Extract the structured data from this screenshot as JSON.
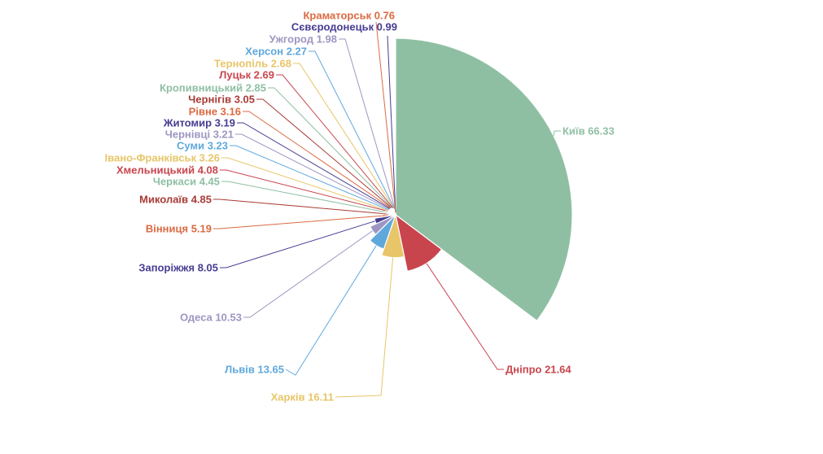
{
  "chart_data": {
    "type": "pie",
    "variant": "nightingale-rose",
    "title": "",
    "legend": "none",
    "grid": false,
    "background": "#ffffff",
    "label_format": "{name} {value}",
    "series": [
      {
        "name": "Київ",
        "value": 66.33,
        "color": "#8FBFA3"
      },
      {
        "name": "Дніпро",
        "value": 21.64,
        "color": "#C9454D"
      },
      {
        "name": "Харків",
        "value": 16.11,
        "color": "#E7C568"
      },
      {
        "name": "Львів",
        "value": 13.65,
        "color": "#5FA8DC"
      },
      {
        "name": "Одеса",
        "value": 10.53,
        "color": "#9E96C2"
      },
      {
        "name": "Запоріжжя",
        "value": 8.05,
        "color": "#453C92"
      },
      {
        "name": "Вінниця",
        "value": 5.19,
        "color": "#DB6A42"
      },
      {
        "name": "Миколаїв",
        "value": 4.85,
        "color": "#A93B35"
      },
      {
        "name": "Черкаси",
        "value": 4.45,
        "color": "#8FBFA3"
      },
      {
        "name": "Хмельницький",
        "value": 4.08,
        "color": "#C9454D"
      },
      {
        "name": "Івано-Франківськ",
        "value": 3.26,
        "color": "#E7C568"
      },
      {
        "name": "Суми",
        "value": 3.23,
        "color": "#5FA8DC"
      },
      {
        "name": "Чернівці",
        "value": 3.21,
        "color": "#9E96C2"
      },
      {
        "name": "Житомир",
        "value": 3.19,
        "color": "#453C92"
      },
      {
        "name": "Рівне",
        "value": 3.16,
        "color": "#DB6A42"
      },
      {
        "name": "Чернігів",
        "value": 3.05,
        "color": "#A93B35"
      },
      {
        "name": "Кропивницький",
        "value": 2.85,
        "color": "#8FBFA3"
      },
      {
        "name": "Луцьк",
        "value": 2.69,
        "color": "#C9454D"
      },
      {
        "name": "Тернопіль",
        "value": 2.68,
        "color": "#E7C568"
      },
      {
        "name": "Херсон",
        "value": 2.27,
        "color": "#5FA8DC"
      },
      {
        "name": "Ужгород",
        "value": 1.98,
        "color": "#9E96C2"
      },
      {
        "name": "Сєвєродонецьк",
        "value": 0.99,
        "color": "#453C92"
      },
      {
        "name": "Краматорськ",
        "value": 0.76,
        "color": "#DB6A42"
      }
    ]
  }
}
